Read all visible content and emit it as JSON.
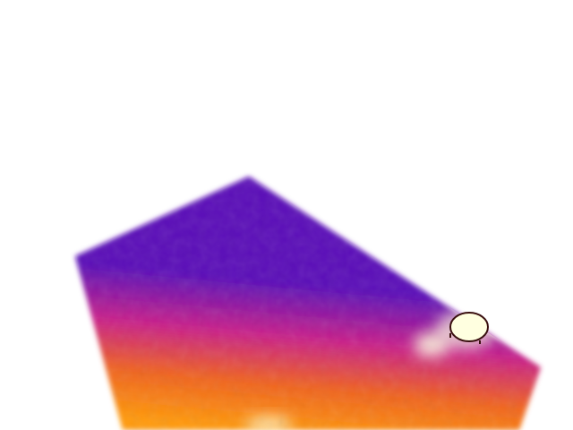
{
  "scene": {
    "background_color": "#ffffff",
    "subject": "thermal-surface",
    "palette": {
      "cool": "#5a10b8",
      "mid": "#c8208a",
      "warm": "#f0641e",
      "hot": "#ff9a0a",
      "hotspot": "#ffffe0"
    },
    "hotspots": [
      {
        "name": "hotspot-right",
        "intensity": 1.0
      },
      {
        "name": "hotspot-center-right",
        "intensity": 0.85
      },
      {
        "name": "hotspot-bottom",
        "intensity": 0.7
      }
    ],
    "marker": {
      "name": "circular-marker",
      "color": "#3a1010"
    }
  }
}
